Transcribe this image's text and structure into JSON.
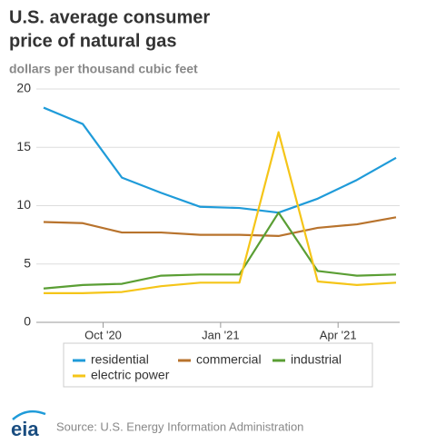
{
  "chart_data": {
    "type": "line",
    "title": [
      "U.S. average consumer",
      "price of natural gas"
    ],
    "subtitle": "dollars per thousand cubic feet",
    "categories": [
      null,
      null,
      "Oct '20",
      null,
      null,
      "Jan '21",
      null,
      null,
      "Apr '21",
      null
    ],
    "series": [
      {
        "name": "residential",
        "color": "#1f9bd9",
        "values": [
          18.4,
          17.0,
          12.4,
          11.1,
          9.9,
          9.8,
          9.4,
          10.6,
          12.2,
          14.1
        ]
      },
      {
        "name": "commercial",
        "color": "#b8732d",
        "values": [
          8.6,
          8.5,
          7.7,
          7.7,
          7.5,
          7.5,
          7.4,
          8.1,
          8.4,
          9.0
        ]
      },
      {
        "name": "industrial",
        "color": "#5a9e34",
        "values": [
          2.9,
          3.2,
          3.3,
          4.0,
          4.1,
          4.1,
          9.4,
          4.4,
          4.0,
          4.1
        ]
      },
      {
        "name": "electric power",
        "color": "#f5c518",
        "values": [
          2.5,
          2.5,
          2.6,
          3.1,
          3.4,
          3.4,
          16.3,
          3.5,
          3.2,
          3.4
        ]
      }
    ],
    "ylim": [
      0,
      20
    ],
    "yticks": [
      0,
      5,
      10,
      15,
      20
    ],
    "grid": true,
    "legend": "bottom",
    "source": "Source: U.S. Energy Information Administration"
  }
}
